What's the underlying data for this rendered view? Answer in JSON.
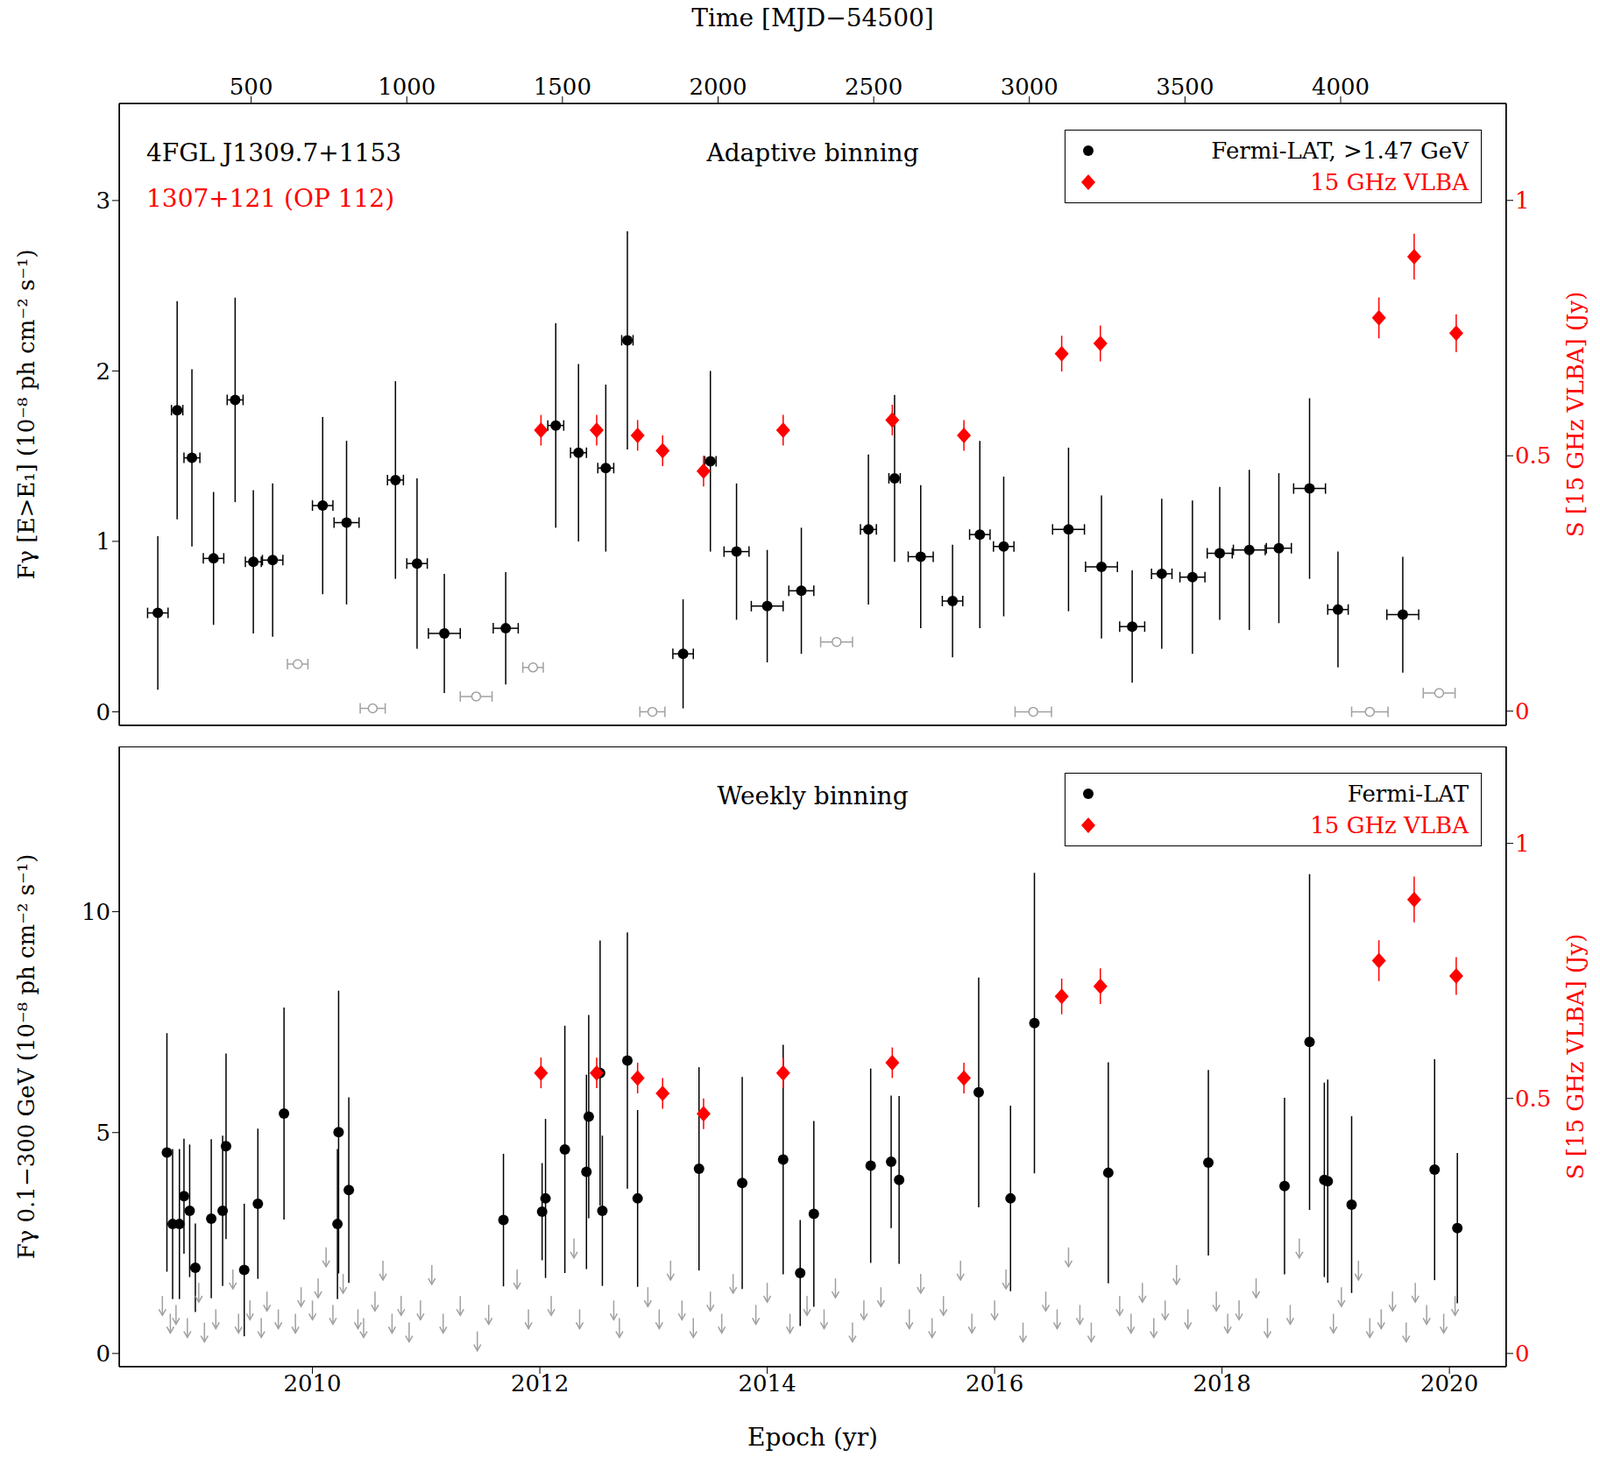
{
  "chart_data": [
    {
      "type": "scatter",
      "title": "Adaptive binning",
      "x2_label": "Time [MJD−54500]",
      "y_label": "Fγ [E>E₁] (10⁻⁸ ph cm⁻² s⁻¹)",
      "y2_label": "S [15 GHz VLBA] (Jy)",
      "annotations": [
        {
          "text": "4FGL J1309.7+1153",
          "color": "#000000"
        },
        {
          "text": "1307+121 (OP 112)",
          "color": "#ff0000"
        }
      ],
      "xlim": [
        2008.3,
        2020.5
      ],
      "x2lim": [
        76,
        4532
      ],
      "x2ticks": [
        500,
        1000,
        1500,
        2000,
        2500,
        3000,
        3500,
        4000
      ],
      "ylim": [
        -0.08,
        3.57
      ],
      "yticks": [
        0,
        1,
        2,
        3
      ],
      "y2lim": [
        -0.028,
        1.19
      ],
      "y2ticks": [
        0,
        0.5,
        1
      ],
      "legend": "upper right",
      "series": [
        {
          "name": "Fermi-LAT, >1.47 GeV",
          "color": "#000000",
          "marker": "circle",
          "x": [
            2008.64,
            2008.81,
            2008.94,
            2009.13,
            2009.32,
            2009.48,
            2009.65,
            2010.09,
            2010.3,
            2010.73,
            2010.92,
            2011.16,
            2011.7,
            2012.14,
            2012.34,
            2012.58,
            2012.77,
            2013.26,
            2013.5,
            2013.73,
            2014.0,
            2014.3,
            2014.89,
            2015.12,
            2015.35,
            2015.63,
            2015.87,
            2016.08,
            2016.65,
            2016.94,
            2017.21,
            2017.47,
            2017.74,
            2017.98,
            2018.24,
            2018.5,
            2018.77,
            2019.02,
            2019.59
          ],
          "values": [
            0.58,
            1.77,
            1.49,
            0.9,
            1.83,
            0.88,
            0.89,
            1.21,
            1.11,
            1.36,
            0.87,
            0.46,
            0.49,
            1.68,
            1.52,
            1.43,
            2.18,
            0.34,
            1.47,
            0.94,
            0.62,
            0.71,
            1.07,
            1.37,
            0.91,
            0.65,
            1.04,
            0.97,
            1.07,
            0.85,
            0.5,
            0.81,
            0.79,
            0.93,
            0.95,
            0.96,
            1.31,
            0.6,
            0.57
          ],
          "yerr": [
            0.45,
            0.64,
            0.52,
            0.39,
            0.6,
            0.42,
            0.45,
            0.52,
            0.48,
            0.58,
            0.5,
            0.35,
            0.33,
            0.6,
            0.52,
            0.49,
            0.64,
            0.32,
            0.53,
            0.4,
            0.33,
            0.37,
            0.44,
            0.49,
            0.42,
            0.33,
            0.55,
            0.41,
            0.48,
            0.42,
            0.33,
            0.44,
            0.45,
            0.39,
            0.47,
            0.44,
            0.53,
            0.34,
            0.34
          ],
          "xerr": [
            0.09,
            0.05,
            0.07,
            0.09,
            0.07,
            0.07,
            0.09,
            0.09,
            0.11,
            0.07,
            0.09,
            0.14,
            0.11,
            0.07,
            0.07,
            0.07,
            0.05,
            0.09,
            0.05,
            0.11,
            0.14,
            0.11,
            0.07,
            0.05,
            0.11,
            0.09,
            0.09,
            0.09,
            0.14,
            0.14,
            0.11,
            0.09,
            0.11,
            0.11,
            0.14,
            0.11,
            0.14,
            0.09,
            0.14
          ]
        },
        {
          "color": "#a0a0a0",
          "marker": "open circle",
          "x": [
            2009.87,
            2010.53,
            2011.44,
            2011.94,
            2012.99,
            2014.61,
            2016.34,
            2019.3,
            2019.91
          ],
          "values": [
            0.28,
            0.02,
            0.09,
            0.26,
            0.0,
            0.41,
            0.0,
            0.0,
            0.11
          ],
          "xerr": [
            0.09,
            0.11,
            0.14,
            0.09,
            0.11,
            0.14,
            0.16,
            0.16,
            0.14
          ]
        },
        {
          "name": "15 GHz VLBA",
          "color": "#ff0000",
          "marker": "diamond",
          "axis": "y2",
          "x": [
            2012.01,
            2012.5,
            2012.86,
            2013.08,
            2013.44,
            2014.14,
            2015.1,
            2015.73,
            2016.59,
            2016.93,
            2019.38,
            2019.69,
            2020.06
          ],
          "values": [
            0.55,
            0.55,
            0.54,
            0.51,
            0.47,
            0.55,
            0.57,
            0.54,
            0.7,
            0.72,
            0.77,
            0.89,
            0.74
          ],
          "yerr": [
            0.03,
            0.03,
            0.03,
            0.03,
            0.03,
            0.03,
            0.03,
            0.03,
            0.035,
            0.035,
            0.04,
            0.045,
            0.037
          ]
        }
      ]
    },
    {
      "type": "scatter",
      "title": "Weekly binning",
      "x_label": "Epoch (yr)",
      "y_label": "Fγ 0.1−300 GeV (10⁻⁸ ph cm⁻² s⁻¹)",
      "y2_label": "S [15 GHz VLBA] (Jy)",
      "xlim": [
        2008.3,
        2020.5
      ],
      "xticks": [
        2010,
        2012,
        2014,
        2016,
        2018,
        2020
      ],
      "ylim": [
        -0.3,
        13.74
      ],
      "yticks": [
        0,
        5,
        10
      ],
      "y2lim": [
        -0.026,
        1.19
      ],
      "y2ticks": [
        0,
        0.5,
        1
      ],
      "legend": "upper right",
      "series": [
        {
          "color": "#a0a0a0",
          "marker": "arrow",
          "x": [
            2008.68,
            2008.75,
            2008.8,
            2008.9,
            2009.0,
            2009.05,
            2009.15,
            2009.3,
            2009.35,
            2009.45,
            2009.55,
            2009.6,
            2009.7,
            2009.85,
            2009.9,
            2010.0,
            2010.05,
            2010.12,
            2010.18,
            2010.27,
            2010.4,
            2010.45,
            2010.55,
            2010.62,
            2010.7,
            2010.78,
            2010.85,
            2010.95,
            2011.05,
            2011.15,
            2011.3,
            2011.45,
            2011.55,
            2011.8,
            2011.9,
            2012.1,
            2012.3,
            2012.35,
            2012.65,
            2012.7,
            2012.95,
            2013.05,
            2013.15,
            2013.25,
            2013.35,
            2013.5,
            2013.6,
            2013.7,
            2013.9,
            2014.0,
            2014.2,
            2014.35,
            2014.5,
            2014.6,
            2014.75,
            2014.85,
            2015.0,
            2015.25,
            2015.35,
            2015.45,
            2015.55,
            2015.7,
            2015.8,
            2016.0,
            2016.1,
            2016.25,
            2016.45,
            2016.55,
            2016.65,
            2016.75,
            2016.85,
            2017.1,
            2017.2,
            2017.3,
            2017.4,
            2017.5,
            2017.6,
            2017.7,
            2017.95,
            2018.05,
            2018.15,
            2018.3,
            2018.4,
            2018.6,
            2018.68,
            2018.98,
            2019.05,
            2019.2,
            2019.3,
            2019.4,
            2019.5,
            2019.62,
            2019.7,
            2019.8,
            2019.95,
            2020.05
          ],
          "values": [
            1.3,
            0.9,
            1.1,
            0.8,
            1.6,
            0.7,
            1.0,
            1.9,
            0.9,
            1.2,
            0.8,
            1.4,
            1.0,
            0.9,
            1.5,
            1.2,
            1.7,
            2.4,
            1.1,
            1.8,
            1.0,
            0.8,
            1.4,
            2.1,
            0.9,
            1.3,
            0.7,
            1.2,
            2.0,
            0.9,
            1.3,
            0.5,
            1.1,
            1.9,
            1.0,
            1.3,
            2.6,
            1.0,
            1.2,
            0.8,
            1.5,
            1.0,
            2.1,
            1.2,
            0.8,
            1.4,
            0.9,
            1.8,
            1.1,
            1.6,
            0.9,
            1.3,
            1.0,
            1.7,
            0.7,
            1.2,
            1.5,
            1.0,
            1.8,
            0.8,
            1.3,
            2.1,
            0.9,
            1.2,
            1.9,
            0.7,
            1.4,
            1.0,
            2.4,
            1.1,
            0.7,
            1.3,
            0.9,
            1.6,
            0.8,
            1.2,
            2.0,
            1.0,
            1.4,
            0.9,
            1.2,
            1.7,
            0.8,
            1.1,
            2.6,
            0.9,
            1.5,
            2.1,
            0.8,
            1.0,
            1.4,
            0.7,
            1.6,
            1.1,
            0.9,
            1.3
          ]
        },
        {
          "name": "Fermi-LAT",
          "color": "#000000",
          "marker": "circle",
          "x": [
            2008.72,
            2008.77,
            2008.83,
            2008.87,
            2008.92,
            2008.97,
            2009.11,
            2009.21,
            2009.24,
            2009.4,
            2009.52,
            2009.75,
            2010.22,
            2010.23,
            2010.32,
            2011.68,
            2012.02,
            2012.05,
            2012.22,
            2012.41,
            2012.43,
            2012.53,
            2012.55,
            2012.77,
            2012.86,
            2013.4,
            2013.78,
            2014.14,
            2014.29,
            2014.41,
            2014.91,
            2015.09,
            2015.16,
            2015.86,
            2016.14,
            2016.35,
            2017.0,
            2017.88,
            2018.55,
            2018.77,
            2018.9,
            2018.93,
            2019.14,
            2019.87,
            2020.07
          ],
          "values": [
            4.55,
            2.93,
            2.93,
            3.56,
            3.23,
            1.94,
            3.05,
            3.23,
            4.69,
            1.89,
            3.39,
            5.43,
            2.93,
            5.01,
            3.7,
            3.02,
            3.21,
            3.51,
            4.62,
            4.11,
            5.36,
            6.35,
            3.23,
            6.63,
            3.51,
            4.18,
            3.86,
            4.39,
            1.82,
            3.16,
            4.25,
            4.34,
            3.93,
            5.91,
            3.51,
            7.48,
            4.09,
            4.32,
            3.79,
            7.05,
            3.93,
            3.9,
            3.37,
            4.16,
            2.84
          ],
          "yerr": [
            2.7,
            1.7,
            1.7,
            1.3,
            1.5,
            1.0,
            1.8,
            1.7,
            2.1,
            1.5,
            1.7,
            2.4,
            1.7,
            3.2,
            2.1,
            1.5,
            1.1,
            1.8,
            2.8,
            2.2,
            2.3,
            3.0,
            1.7,
            2.9,
            2.0,
            2.3,
            2.4,
            2.6,
            1.2,
            2.1,
            2.2,
            1.5,
            1.9,
            2.6,
            2.1,
            3.4,
            2.5,
            2.1,
            2.0,
            3.8,
            2.2,
            2.3,
            2.0,
            2.5,
            1.7
          ]
        },
        {
          "name": "15 GHz VLBA",
          "color": "#ff0000",
          "marker": "diamond",
          "axis": "y2",
          "x": [
            2012.01,
            2012.5,
            2012.86,
            2013.08,
            2013.44,
            2014.14,
            2015.1,
            2015.73,
            2016.59,
            2016.93,
            2019.38,
            2019.69,
            2020.06
          ],
          "values": [
            0.55,
            0.55,
            0.54,
            0.51,
            0.47,
            0.55,
            0.57,
            0.54,
            0.7,
            0.72,
            0.77,
            0.89,
            0.74
          ],
          "yerr": [
            0.03,
            0.03,
            0.03,
            0.03,
            0.03,
            0.03,
            0.03,
            0.03,
            0.035,
            0.035,
            0.04,
            0.045,
            0.037
          ]
        }
      ]
    }
  ]
}
